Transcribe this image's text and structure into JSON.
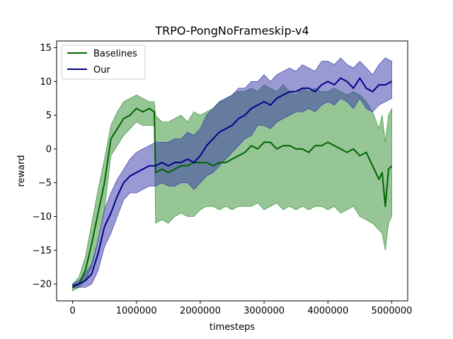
{
  "chart_data": {
    "type": "line",
    "title": "TRPO-PongNoFrameskip-v4",
    "xlabel": "timesteps",
    "ylabel": "reward",
    "xlim": [
      -250000,
      5250000
    ],
    "ylim": [
      -22.5,
      16.0
    ],
    "xticks": [
      0,
      1000000,
      2000000,
      3000000,
      4000000,
      5000000
    ],
    "xtick_labels": [
      "0",
      "1000000",
      "2000000",
      "3000000",
      "4000000",
      "5000000"
    ],
    "yticks": [
      -20,
      -15,
      -10,
      -5,
      0,
      5,
      10,
      15
    ],
    "ytick_labels": [
      "−20",
      "−15",
      "−10",
      "−5",
      "0",
      "5",
      "10",
      "15"
    ],
    "grid": false,
    "legend_position": "top-left",
    "series": [
      {
        "name": "Baselines",
        "color": "#006400",
        "band_color": "#2e8b2e",
        "x": [
          0,
          100000,
          200000,
          300000,
          400000,
          500000,
          600000,
          700000,
          800000,
          900000,
          1000000,
          1100000,
          1200000,
          1280000,
          1300000,
          1400000,
          1500000,
          1600000,
          1700000,
          1800000,
          1900000,
          2000000,
          2100000,
          2200000,
          2300000,
          2400000,
          2500000,
          2600000,
          2700000,
          2800000,
          2900000,
          3000000,
          3100000,
          3200000,
          3300000,
          3400000,
          3500000,
          3600000,
          3700000,
          3800000,
          3900000,
          4000000,
          4100000,
          4200000,
          4300000,
          4400000,
          4500000,
          4600000,
          4700000,
          4800000,
          4850000,
          4900000,
          4950000,
          5000000
        ],
        "y": [
          -20.5,
          -20.0,
          -18.0,
          -14.0,
          -9.5,
          -5.0,
          1.5,
          3.0,
          4.5,
          5.0,
          6.0,
          5.5,
          6.0,
          5.5,
          -3.5,
          -3.0,
          -3.5,
          -3.0,
          -2.5,
          -2.5,
          -2.0,
          -2.0,
          -2.0,
          -2.5,
          -2.0,
          -2.0,
          -1.5,
          -1.0,
          -0.5,
          0.5,
          0.0,
          1.0,
          1.0,
          0.0,
          0.5,
          0.5,
          0.0,
          0.0,
          -0.5,
          0.5,
          0.5,
          1.0,
          0.5,
          0.0,
          -0.5,
          0.0,
          -1.0,
          -0.5,
          -2.5,
          -4.5,
          -3.5,
          -8.5,
          -3.0,
          -2.5
        ],
        "upper": [
          -20.0,
          -19.0,
          -16.0,
          -11.0,
          -6.0,
          -1.5,
          3.5,
          5.5,
          7.0,
          7.5,
          8.0,
          7.5,
          7.0,
          7.0,
          5.0,
          4.0,
          4.0,
          4.5,
          5.0,
          4.0,
          5.5,
          5.0,
          5.5,
          6.0,
          7.0,
          7.5,
          8.0,
          8.5,
          8.5,
          9.0,
          8.5,
          9.5,
          9.0,
          8.5,
          9.5,
          8.5,
          8.0,
          9.0,
          8.5,
          9.0,
          8.5,
          8.5,
          9.0,
          8.5,
          8.0,
          8.5,
          8.0,
          7.0,
          5.5,
          3.0,
          5.0,
          1.0,
          5.0,
          6.0
        ],
        "lower": [
          -21.0,
          -20.5,
          -19.5,
          -17.5,
          -13.5,
          -9.0,
          -1.0,
          0.5,
          2.0,
          3.0,
          4.0,
          3.5,
          3.5,
          3.5,
          -11.0,
          -10.5,
          -11.0,
          -10.0,
          -9.5,
          -10.0,
          -10.0,
          -9.0,
          -8.5,
          -8.5,
          -9.0,
          -8.5,
          -9.0,
          -8.5,
          -8.5,
          -8.5,
          -8.0,
          -9.0,
          -8.5,
          -8.0,
          -9.0,
          -8.5,
          -9.0,
          -8.5,
          -9.0,
          -8.5,
          -8.5,
          -9.0,
          -8.5,
          -9.5,
          -9.0,
          -8.5,
          -10.0,
          -10.5,
          -11.0,
          -12.0,
          -12.5,
          -15.0,
          -11.0,
          -10.0
        ]
      },
      {
        "name": "Our",
        "color": "#00008b",
        "band_color": "#3434a8",
        "x": [
          0,
          100000,
          200000,
          300000,
          400000,
          500000,
          600000,
          700000,
          800000,
          900000,
          1000000,
          1100000,
          1200000,
          1300000,
          1400000,
          1500000,
          1600000,
          1700000,
          1800000,
          1900000,
          2000000,
          2100000,
          2200000,
          2300000,
          2400000,
          2500000,
          2600000,
          2700000,
          2800000,
          2900000,
          3000000,
          3100000,
          3200000,
          3300000,
          3400000,
          3500000,
          3600000,
          3700000,
          3800000,
          3900000,
          4000000,
          4100000,
          4200000,
          4300000,
          4400000,
          4500000,
          4600000,
          4700000,
          4800000,
          4900000,
          5000000
        ],
        "y": [
          -20.3,
          -20.0,
          -19.5,
          -18.5,
          -15.5,
          -11.5,
          -9.5,
          -7.0,
          -5.0,
          -4.0,
          -3.5,
          -3.0,
          -2.5,
          -2.5,
          -2.0,
          -2.5,
          -2.0,
          -2.0,
          -1.5,
          -2.0,
          -1.0,
          0.5,
          1.5,
          2.5,
          3.0,
          3.5,
          4.5,
          5.0,
          6.0,
          6.5,
          7.0,
          6.5,
          7.5,
          8.0,
          8.5,
          8.5,
          9.0,
          9.0,
          8.5,
          9.5,
          10.0,
          9.5,
          10.5,
          10.0,
          9.0,
          10.5,
          9.0,
          8.5,
          9.5,
          9.5,
          10.0
        ],
        "upper": [
          -20.0,
          -19.5,
          -18.5,
          -17.0,
          -13.5,
          -9.0,
          -6.5,
          -4.5,
          -3.0,
          -1.5,
          -0.5,
          0.0,
          0.5,
          1.0,
          1.0,
          1.0,
          1.5,
          1.5,
          2.5,
          2.0,
          3.0,
          5.0,
          6.0,
          7.0,
          7.5,
          8.0,
          9.0,
          9.0,
          10.0,
          10.0,
          11.0,
          10.0,
          11.0,
          11.5,
          12.0,
          11.5,
          12.5,
          12.0,
          11.5,
          13.0,
          13.0,
          12.5,
          13.5,
          12.5,
          12.0,
          13.0,
          12.0,
          11.0,
          12.5,
          13.5,
          13.0
        ],
        "lower": [
          -20.6,
          -20.5,
          -20.5,
          -20.0,
          -18.0,
          -14.5,
          -12.5,
          -10.0,
          -7.5,
          -6.5,
          -6.5,
          -6.0,
          -5.5,
          -5.5,
          -5.0,
          -5.5,
          -5.5,
          -5.0,
          -5.0,
          -6.0,
          -5.0,
          -4.0,
          -3.5,
          -2.5,
          -1.5,
          -0.5,
          0.5,
          1.5,
          2.0,
          3.5,
          3.5,
          3.0,
          4.0,
          4.5,
          5.0,
          5.5,
          5.5,
          6.0,
          5.5,
          6.5,
          7.0,
          6.5,
          7.5,
          7.0,
          6.0,
          7.5,
          6.0,
          5.5,
          6.5,
          7.0,
          7.5
        ]
      }
    ]
  }
}
